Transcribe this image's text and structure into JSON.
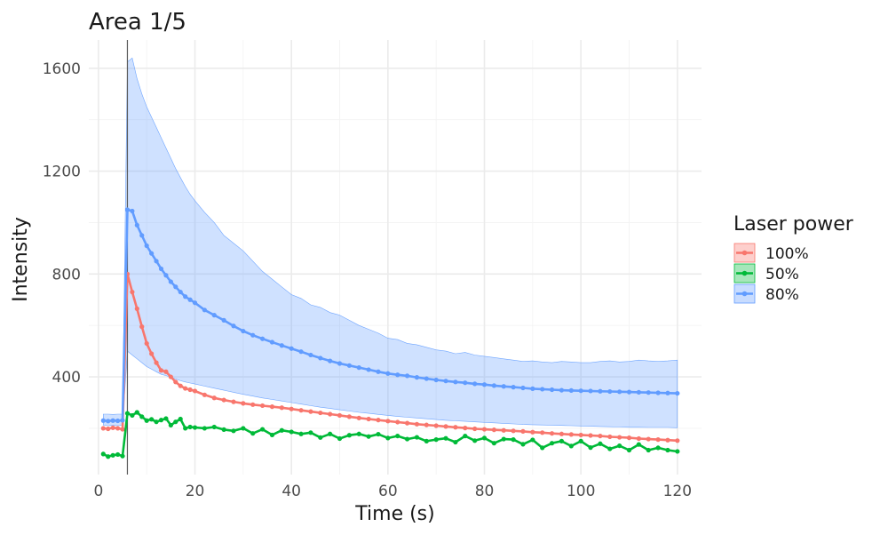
{
  "chart_data": {
    "type": "line",
    "title": "Area 1/5",
    "xlabel": "Time (s)",
    "ylabel": "Intensity",
    "xlim": [
      -2,
      125
    ],
    "ylim": [
      20,
      1710
    ],
    "xticks": [
      0,
      20,
      40,
      60,
      80,
      100,
      120
    ],
    "yticks": [
      400,
      800,
      1200,
      1600
    ],
    "vline_x": 6,
    "grid": true,
    "legend": {
      "title": "Laser power",
      "position": "right",
      "items": [
        "100%",
        "50%",
        "80%"
      ]
    },
    "series": [
      {
        "name": "100%",
        "color": "#F8766D",
        "x": [
          1,
          2,
          3,
          4,
          5,
          6,
          7,
          8,
          9,
          10,
          11,
          12,
          13,
          14,
          15,
          16,
          17,
          18,
          19,
          20,
          22,
          24,
          26,
          28,
          30,
          32,
          34,
          36,
          38,
          40,
          42,
          44,
          46,
          48,
          50,
          52,
          54,
          56,
          58,
          60,
          62,
          64,
          66,
          68,
          70,
          72,
          74,
          76,
          78,
          80,
          82,
          84,
          86,
          88,
          90,
          92,
          94,
          96,
          98,
          100,
          102,
          104,
          106,
          108,
          110,
          112,
          114,
          116,
          118,
          120
        ],
        "y": [
          200,
          198,
          202,
          200,
          196,
          800,
          730,
          665,
          595,
          530,
          490,
          455,
          425,
          420,
          400,
          380,
          365,
          355,
          350,
          345,
          330,
          318,
          310,
          303,
          297,
          292,
          288,
          284,
          280,
          275,
          270,
          265,
          260,
          255,
          250,
          245,
          240,
          236,
          232,
          228,
          224,
          220,
          216,
          213,
          210,
          207,
          204,
          201,
          198,
          196,
          194,
          192,
          190,
          188,
          185,
          183,
          180,
          178,
          176,
          174,
          172,
          170,
          167,
          165,
          163,
          160,
          158,
          156,
          154,
          152
        ]
      },
      {
        "name": "50%",
        "color": "#00BA38",
        "x": [
          1,
          2,
          3,
          4,
          5,
          6,
          7,
          8,
          9,
          10,
          11,
          12,
          13,
          14,
          15,
          16,
          17,
          18,
          19,
          20,
          22,
          24,
          26,
          28,
          30,
          32,
          34,
          36,
          38,
          40,
          42,
          44,
          46,
          48,
          50,
          52,
          54,
          56,
          58,
          60,
          62,
          64,
          66,
          68,
          70,
          72,
          74,
          76,
          78,
          80,
          82,
          84,
          86,
          88,
          90,
          92,
          94,
          96,
          98,
          100,
          102,
          104,
          106,
          108,
          110,
          112,
          114,
          116,
          118,
          120
        ],
        "y": [
          100,
          90,
          95,
          98,
          92,
          258,
          250,
          262,
          245,
          230,
          235,
          225,
          232,
          238,
          212,
          225,
          236,
          200,
          205,
          203,
          200,
          205,
          195,
          190,
          200,
          180,
          196,
          174,
          192,
          186,
          178,
          183,
          164,
          178,
          160,
          173,
          178,
          168,
          177,
          162,
          170,
          158,
          165,
          150,
          156,
          161,
          146,
          170,
          152,
          162,
          142,
          158,
          156,
          138,
          155,
          124,
          142,
          150,
          131,
          150,
          125,
          140,
          120,
          132,
          115,
          137,
          115,
          124,
          115,
          110
        ]
      },
      {
        "name": "80%",
        "color": "#619CFF",
        "x": [
          1,
          2,
          3,
          4,
          5,
          6,
          7,
          8,
          9,
          10,
          11,
          12,
          13,
          14,
          15,
          16,
          17,
          18,
          19,
          20,
          22,
          24,
          26,
          28,
          30,
          32,
          34,
          36,
          38,
          40,
          42,
          44,
          46,
          48,
          50,
          52,
          54,
          56,
          58,
          60,
          62,
          64,
          66,
          68,
          70,
          72,
          74,
          76,
          78,
          80,
          82,
          84,
          86,
          88,
          90,
          92,
          94,
          96,
          98,
          100,
          102,
          104,
          106,
          108,
          110,
          112,
          114,
          116,
          118,
          120
        ],
        "y": [
          230,
          228,
          230,
          229,
          231,
          1050,
          1045,
          990,
          950,
          910,
          880,
          850,
          820,
          795,
          770,
          750,
          730,
          712,
          700,
          688,
          660,
          640,
          620,
          598,
          578,
          562,
          548,
          535,
          522,
          510,
          498,
          485,
          473,
          462,
          452,
          444,
          436,
          428,
          420,
          413,
          408,
          404,
          398,
          393,
          388,
          384,
          380,
          377,
          373,
          370,
          366,
          363,
          360,
          357,
          354,
          352,
          350,
          348,
          347,
          346,
          345,
          344,
          343,
          342,
          341,
          340,
          339,
          338,
          337,
          336
        ],
        "band_x": [
          1,
          2,
          3,
          4,
          5,
          6,
          7,
          8,
          9,
          10,
          11,
          12,
          13,
          14,
          15,
          16,
          17,
          18,
          19,
          20,
          22,
          24,
          26,
          28,
          30,
          32,
          34,
          36,
          38,
          40,
          42,
          44,
          46,
          48,
          50,
          52,
          54,
          56,
          58,
          60,
          62,
          64,
          66,
          68,
          70,
          72,
          74,
          76,
          78,
          80,
          82,
          84,
          86,
          88,
          90,
          92,
          94,
          96,
          98,
          100,
          102,
          104,
          106,
          108,
          110,
          112,
          114,
          116,
          118,
          120
        ],
        "band_upper": [
          255,
          255,
          254,
          255,
          255,
          1625,
          1640,
          1560,
          1500,
          1450,
          1410,
          1370,
          1330,
          1290,
          1250,
          1210,
          1175,
          1140,
          1110,
          1085,
          1040,
          1000,
          950,
          920,
          890,
          850,
          810,
          780,
          750,
          720,
          705,
          680,
          670,
          650,
          640,
          620,
          600,
          585,
          570,
          550,
          545,
          530,
          525,
          515,
          505,
          500,
          490,
          495,
          485,
          480,
          475,
          470,
          465,
          460,
          462,
          458,
          455,
          460,
          458,
          455,
          455,
          460,
          462,
          458,
          460,
          465,
          462,
          460,
          462,
          465
        ],
        "band_lower": [
          212,
          210,
          212,
          210,
          212,
          500,
          485,
          470,
          455,
          440,
          430,
          420,
          410,
          405,
          398,
          392,
          385,
          380,
          376,
          372,
          364,
          356,
          348,
          340,
          332,
          325,
          318,
          312,
          306,
          300,
          294,
          288,
          282,
          277,
          272,
          267,
          262,
          258,
          254,
          250,
          246,
          243,
          240,
          237,
          234,
          231,
          229,
          227,
          225,
          223,
          221,
          219,
          217,
          215,
          214,
          213,
          212,
          211,
          210,
          209,
          208,
          207,
          206,
          205,
          204,
          204,
          203,
          203,
          203,
          202
        ]
      }
    ]
  }
}
